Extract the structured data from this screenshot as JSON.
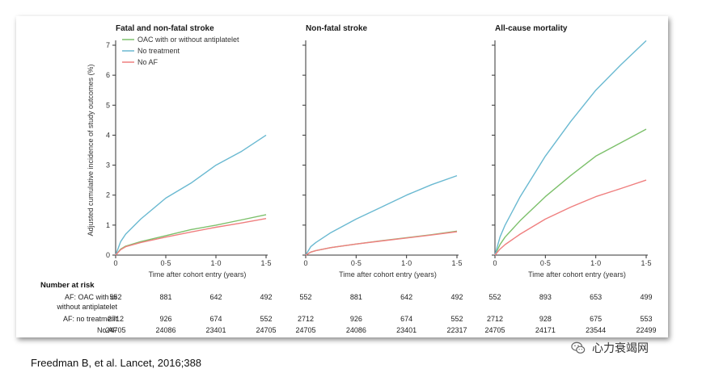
{
  "colors": {
    "oac": "#7cc06b",
    "no_treatment": "#6ab9d1",
    "no_af": "#ef7f7f",
    "axis": "#333333"
  },
  "legend": [
    "OAC with or without antiplatelet",
    "No treatment",
    "No AF"
  ],
  "y_axis_label": "Adjusted cumulative incidence of study outcomes (%)",
  "x_axis_label": "Time after cohort entry (years)",
  "number_at_risk": {
    "title": "Number at risk",
    "row_labels": [
      [
        "AF: OAC with or",
        "without antiplatelet"
      ],
      [
        "AF: no treatment"
      ],
      [
        "No AF"
      ]
    ],
    "panels": [
      {
        "oac": [
          "552",
          "881",
          "642",
          "492"
        ],
        "no_treatment": [
          "2712",
          "926",
          "674",
          "552"
        ],
        "no_af": [
          "24705",
          "24086",
          "23401",
          "24705"
        ]
      },
      {
        "oac": [
          "552",
          "881",
          "642",
          "492"
        ],
        "no_treatment": [
          "2712",
          "926",
          "674",
          "552"
        ],
        "no_af": [
          "24705",
          "24086",
          "23401",
          "22317"
        ]
      },
      {
        "oac": [
          "552",
          "893",
          "653",
          "499"
        ],
        "no_treatment": [
          "2712",
          "928",
          "675",
          "553"
        ],
        "no_af": [
          "24705",
          "24171",
          "23544",
          "22499"
        ]
      }
    ]
  },
  "chart_data": [
    {
      "type": "line",
      "title": "Fatal and non-fatal stroke",
      "xlabel": "Time after cohort entry (years)",
      "ylabel": "Adjusted cumulative incidence of study outcomes (%)",
      "xlim": [
        0,
        1.5
      ],
      "ylim": [
        0,
        7
      ],
      "x_ticks": [
        "0",
        "0·5",
        "1·0",
        "1·5"
      ],
      "y_ticks": [
        "0",
        "1",
        "2",
        "3",
        "4",
        "5",
        "6",
        "7"
      ],
      "x": [
        0,
        0.05,
        0.1,
        0.25,
        0.5,
        0.75,
        1.0,
        1.25,
        1.5
      ],
      "series": [
        {
          "name": "OAC with or without antiplatelet",
          "key": "oac",
          "values": [
            0,
            0.2,
            0.3,
            0.45,
            0.65,
            0.85,
            1.0,
            1.17,
            1.35
          ]
        },
        {
          "name": "No treatment",
          "key": "no_treatment",
          "values": [
            0,
            0.45,
            0.7,
            1.2,
            1.9,
            2.4,
            3.0,
            3.45,
            4.0
          ]
        },
        {
          "name": "No AF",
          "key": "no_af",
          "values": [
            0,
            0.18,
            0.28,
            0.42,
            0.6,
            0.77,
            0.93,
            1.07,
            1.22
          ]
        }
      ],
      "legend_position": "top-left"
    },
    {
      "type": "line",
      "title": "Non-fatal stroke",
      "xlabel": "Time after cohort entry (years)",
      "xlim": [
        0,
        1.5
      ],
      "ylim": [
        0,
        7
      ],
      "x_ticks": [
        "0",
        "0·5",
        "1·0",
        "1·5"
      ],
      "x": [
        0,
        0.05,
        0.1,
        0.25,
        0.5,
        0.75,
        1.0,
        1.25,
        1.5
      ],
      "series": [
        {
          "name": "OAC with or without antiplatelet",
          "key": "oac",
          "values": [
            0,
            0.1,
            0.15,
            0.25,
            0.37,
            0.48,
            0.58,
            0.68,
            0.8
          ]
        },
        {
          "name": "No treatment",
          "key": "no_treatment",
          "values": [
            0,
            0.28,
            0.42,
            0.75,
            1.2,
            1.6,
            2.0,
            2.35,
            2.65
          ]
        },
        {
          "name": "No AF",
          "key": "no_af",
          "values": [
            0,
            0.1,
            0.15,
            0.25,
            0.37,
            0.47,
            0.57,
            0.67,
            0.78
          ]
        }
      ]
    },
    {
      "type": "line",
      "title": "All-cause mortality",
      "xlabel": "Time after cohort entry (years)",
      "xlim": [
        0,
        1.5
      ],
      "ylim": [
        0,
        7
      ],
      "x_ticks": [
        "0",
        "0·5",
        "1·0",
        "1·5"
      ],
      "x": [
        0,
        0.05,
        0.1,
        0.25,
        0.5,
        0.75,
        1.0,
        1.25,
        1.5
      ],
      "series": [
        {
          "name": "OAC with or without antiplatelet",
          "key": "oac",
          "values": [
            0,
            0.35,
            0.6,
            1.15,
            1.95,
            2.65,
            3.3,
            3.75,
            4.2
          ]
        },
        {
          "name": "No treatment",
          "key": "no_treatment",
          "values": [
            0,
            0.6,
            1.0,
            1.95,
            3.3,
            4.45,
            5.5,
            6.35,
            7.15
          ]
        },
        {
          "name": "No AF",
          "key": "no_af",
          "values": [
            0,
            0.2,
            0.35,
            0.7,
            1.2,
            1.6,
            1.95,
            2.22,
            2.5
          ]
        }
      ]
    }
  ],
  "citation": "Freedman B, et al. Lancet, 2016;388",
  "watermark": {
    "text": "心力衰竭网",
    "icon": "wechat-icon"
  }
}
